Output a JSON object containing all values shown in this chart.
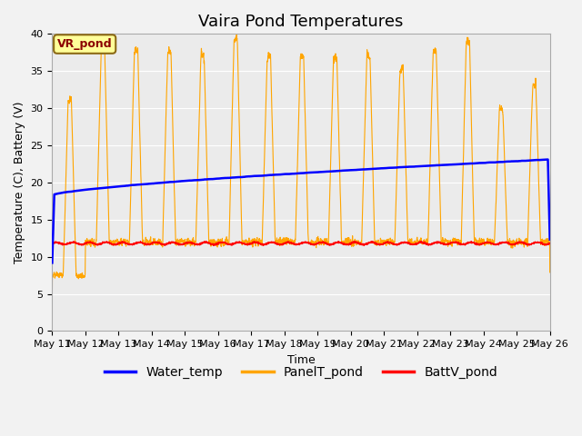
{
  "title": "Vaira Pond Temperatures",
  "xlabel": "Time",
  "ylabel": "Temperature (C), Battery (V)",
  "ylim": [
    0,
    40
  ],
  "n_days": 15,
  "x_tick_labels": [
    "May 11",
    "May 12",
    "May 13",
    "May 14",
    "May 15",
    "May 16",
    "May 17",
    "May 18",
    "May 19",
    "May 20",
    "May 21",
    "May 22",
    "May 23",
    "May 24",
    "May 25",
    "May 26"
  ],
  "annotation_text": "VR_pond",
  "annotation_color": "#8B0000",
  "annotation_bg": "#FFFF99",
  "water_color": "#0000FF",
  "panel_color": "#FFA500",
  "batt_color": "#FF0000",
  "bg_color": "#EBEBEB",
  "fig_bg": "#F2F2F2",
  "title_fontsize": 13,
  "axis_fontsize": 9,
  "tick_fontsize": 8,
  "legend_fontsize": 10
}
